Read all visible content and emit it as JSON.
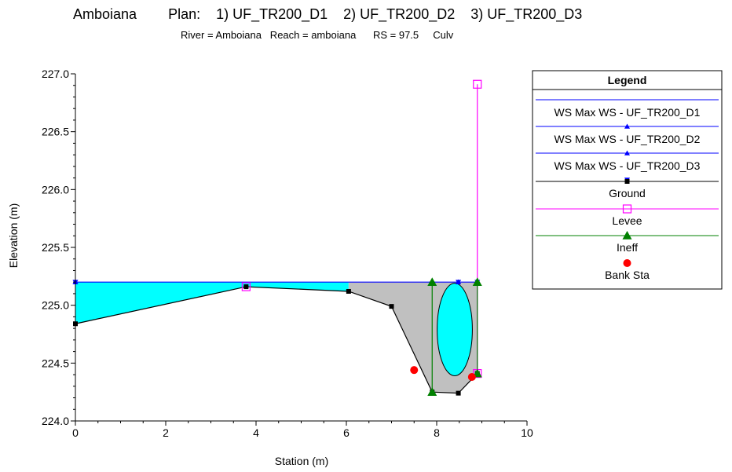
{
  "header": {
    "river_name": "Amboiana",
    "plan_line": "Plan:    1) UF_TR200_D1    2) UF_TR200_D2    3) UF_TR200_D3",
    "subtitle": "River = Amboiana   Reach = amboiana      RS = 97.5     Culv"
  },
  "chart_data": {
    "type": "line",
    "xlabel": "Station (m)",
    "ylabel": "Elevation (m)",
    "xlim": [
      0,
      10
    ],
    "ylim": [
      224.0,
      227.0
    ],
    "x_ticks": [
      0,
      2,
      4,
      6,
      8,
      10
    ],
    "y_ticks": [
      224.0,
      224.5,
      225.0,
      225.5,
      226.0,
      226.5,
      227.0
    ],
    "x_tick_labels": [
      "0",
      "2",
      "4",
      "6",
      "8",
      "10"
    ],
    "y_tick_labels": [
      "224.0",
      "224.5",
      "225.0",
      "225.5",
      "226.0",
      "226.5",
      "227.0"
    ],
    "grid": false,
    "legend_position": "top-right",
    "water_surface_elevation": 225.2,
    "series": [
      {
        "name": "WS Max WS - UF_TR200_D1",
        "color": "#0000ff",
        "marker": "triangle-up",
        "x": [
          0,
          8.48,
          8.9
        ],
        "y": [
          225.2,
          225.2,
          225.2
        ]
      },
      {
        "name": "WS Max WS - UF_TR200_D2",
        "color": "#0000ff",
        "marker": "triangle-up",
        "x": [
          0,
          8.48,
          8.9
        ],
        "y": [
          225.2,
          225.2,
          225.2
        ]
      },
      {
        "name": "WS Max WS - UF_TR200_D3",
        "color": "#0000ff",
        "marker": "triangle-down",
        "x": [
          0,
          8.48,
          8.9
        ],
        "y": [
          225.2,
          225.2,
          225.2
        ]
      },
      {
        "name": "Ground",
        "color": "#000000",
        "marker": "square",
        "x": [
          0,
          3.78,
          6.05,
          7.0,
          7.9,
          8.48,
          8.9
        ],
        "y": [
          224.84,
          225.16,
          225.12,
          224.99,
          224.25,
          224.24,
          224.41
        ]
      },
      {
        "name": "Levee",
        "color": "#ff00ff",
        "marker": "square-open",
        "x": [
          3.78,
          8.9,
          8.9
        ],
        "y": [
          225.16,
          224.41,
          226.91
        ]
      },
      {
        "name": "Ineff",
        "color": "#008000",
        "marker": "triangle-up",
        "x": [
          7.9,
          7.9,
          8.9,
          8.9
        ],
        "y": [
          225.2,
          224.25,
          225.2,
          224.41
        ]
      },
      {
        "name": "Bank Sta",
        "color": "#ff0000",
        "marker": "circle",
        "x": [
          7.5,
          8.78
        ],
        "y": [
          224.44,
          224.38
        ]
      }
    ],
    "culvert": {
      "center_x": 8.4,
      "center_y": 224.79,
      "width": 0.78,
      "height": 0.8
    }
  },
  "legend": {
    "title": "Legend",
    "entries": [
      {
        "label": "WS Max WS - UF_TR200_D1",
        "color": "#0000ff",
        "marker": "triangle-up"
      },
      {
        "label": "WS Max WS - UF_TR200_D2",
        "color": "#0000ff",
        "marker": "triangle-up"
      },
      {
        "label": "WS Max WS - UF_TR200_D3",
        "color": "#0000ff",
        "marker": "triangle-down"
      },
      {
        "label": "Ground",
        "color": "#000000",
        "marker": "square"
      },
      {
        "label": "Levee",
        "color": "#ff00ff",
        "marker": "square-open"
      },
      {
        "label": "Ineff",
        "color": "#008000",
        "marker": "triangle-up"
      },
      {
        "label": "Bank Sta",
        "color": "#ff0000",
        "marker": "circle"
      }
    ]
  },
  "colors": {
    "water_fill": "#00ffff",
    "ground_fill": "#c0c0c0"
  }
}
